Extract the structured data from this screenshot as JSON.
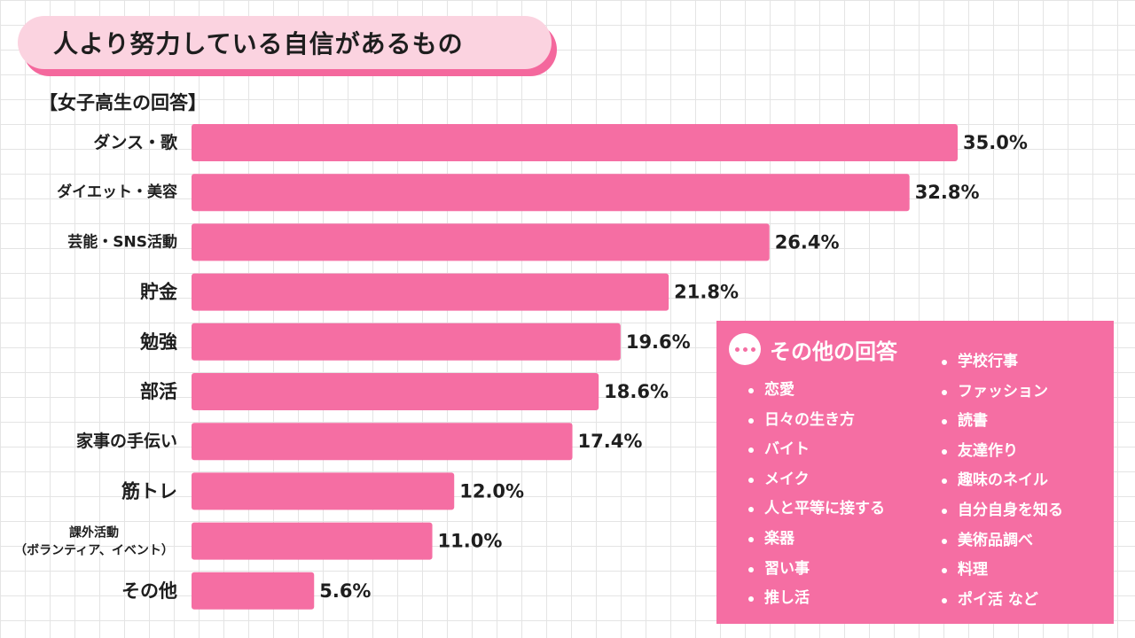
{
  "title": "人より努力している自信があるもの",
  "subtitle": "【女子高生の回答】",
  "colors": {
    "bar": "#f56ea3",
    "bar_accent": "#f4689d",
    "title_bg": "#fbd3e0",
    "grid": "#e4e4e4"
  },
  "chart_data": {
    "type": "bar",
    "orientation": "horizontal",
    "title": "人より努力している自信があるもの",
    "subtitle": "【女子高生の回答】",
    "unit": "%",
    "categories": [
      "ダンス・歌",
      "ダイエット・美容",
      "芸能・SNS活動",
      "貯金",
      "勉強",
      "部活",
      "家事の手伝い",
      "筋トレ",
      "課外活動\n（ボランティア、イベント）",
      "その他"
    ],
    "values": [
      35.0,
      32.8,
      26.4,
      21.8,
      19.6,
      18.6,
      17.4,
      12.0,
      11.0,
      5.6
    ],
    "value_labels": [
      "35.0%",
      "32.8%",
      "26.4%",
      "21.8%",
      "19.6%",
      "18.6%",
      "17.4%",
      "12.0%",
      "11.0%",
      "5.6%"
    ],
    "grid": false,
    "xlim": [
      0,
      35.0
    ]
  },
  "other_answers": {
    "icon": "ellipsis-icon",
    "title": "その他の回答",
    "left": [
      "恋愛",
      "日々の生き方",
      "バイト",
      "メイク",
      "人と平等に接する",
      "楽器",
      "習い事",
      "推し活"
    ],
    "right": [
      "学校行事",
      "ファッション",
      "読書",
      "友達作り",
      "趣味のネイル",
      "自分自身を知る",
      "美術品調べ",
      "料理",
      "ポイ活 など"
    ]
  }
}
